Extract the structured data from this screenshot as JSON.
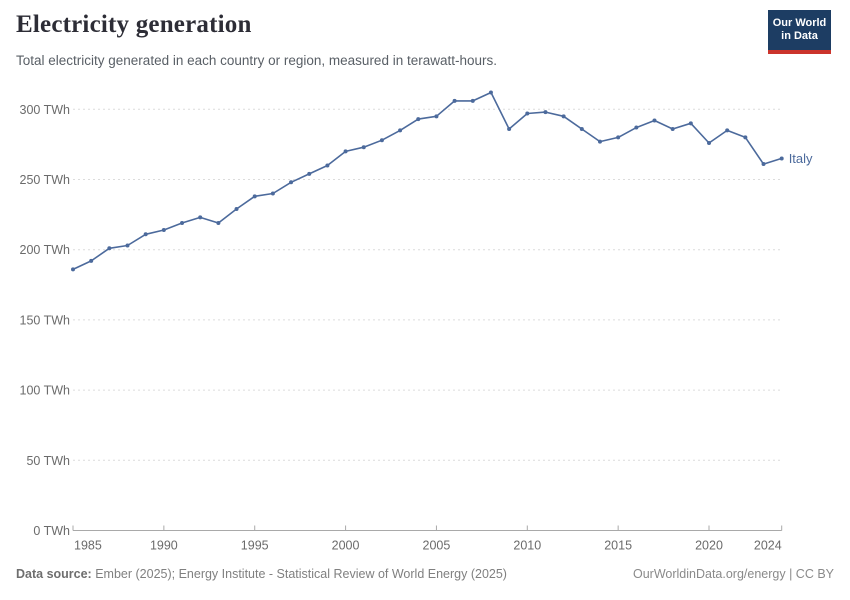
{
  "header": {
    "title": "Electricity generation",
    "subtitle": "Total electricity generated in each country or region, measured in terawatt-hours.",
    "logo": {
      "line1": "Our World",
      "line2": "in Data"
    }
  },
  "chart_data": {
    "type": "line",
    "title": "Electricity generation",
    "xlabel": "",
    "ylabel": "TWh",
    "xlim": [
      1985,
      2024
    ],
    "ylim": [
      0,
      300
    ],
    "grid": "horizontal-dashed",
    "legend_position": "end-of-line-label",
    "series": [
      {
        "name": "Italy",
        "color": "#4c6a9c",
        "years": [
          1985,
          1986,
          1987,
          1988,
          1989,
          1990,
          1991,
          1992,
          1993,
          1994,
          1995,
          1996,
          1997,
          1998,
          1999,
          2000,
          2001,
          2002,
          2003,
          2004,
          2005,
          2006,
          2007,
          2008,
          2009,
          2010,
          2011,
          2012,
          2013,
          2014,
          2015,
          2016,
          2017,
          2018,
          2019,
          2020,
          2021,
          2022,
          2023,
          2024
        ],
        "values": [
          186,
          192,
          201,
          203,
          211,
          214,
          219,
          223,
          219,
          229,
          238,
          240,
          248,
          254,
          260,
          270,
          273,
          278,
          285,
          293,
          295,
          306,
          306,
          312,
          286,
          297,
          298,
          295,
          286,
          277,
          280,
          287,
          292,
          286,
          290,
          276,
          285,
          280,
          261,
          265
        ]
      }
    ],
    "yticks": [
      {
        "value": 0,
        "label": "0 TWh"
      },
      {
        "value": 50,
        "label": "50 TWh"
      },
      {
        "value": 100,
        "label": "100 TWh"
      },
      {
        "value": 150,
        "label": "150 TWh"
      },
      {
        "value": 200,
        "label": "200 TWh"
      },
      {
        "value": 250,
        "label": "250 TWh"
      },
      {
        "value": 300,
        "label": "300 TWh"
      }
    ],
    "xticks": [
      {
        "value": 1985,
        "label": "1985"
      },
      {
        "value": 1990,
        "label": "1990"
      },
      {
        "value": 1995,
        "label": "1995"
      },
      {
        "value": 2000,
        "label": "2000"
      },
      {
        "value": 2005,
        "label": "2005"
      },
      {
        "value": 2010,
        "label": "2010"
      },
      {
        "value": 2015,
        "label": "2015"
      },
      {
        "value": 2020,
        "label": "2020"
      },
      {
        "value": 2024,
        "label": "2024"
      }
    ],
    "end_label": "Italy"
  },
  "footer": {
    "source_label": "Data source:",
    "source_text": " Ember (2025); Energy Institute - Statistical Review of World Energy (2025)",
    "credit": "OurWorldinData.org/energy | CC BY"
  },
  "colors": {
    "accent": "#4c6a9c",
    "grid": "#dcdcdc",
    "axis": "#a9a9a9",
    "tick_text": "#6b6b6b",
    "logo_bg": "#1d3d63",
    "logo_red": "#cb342c"
  }
}
